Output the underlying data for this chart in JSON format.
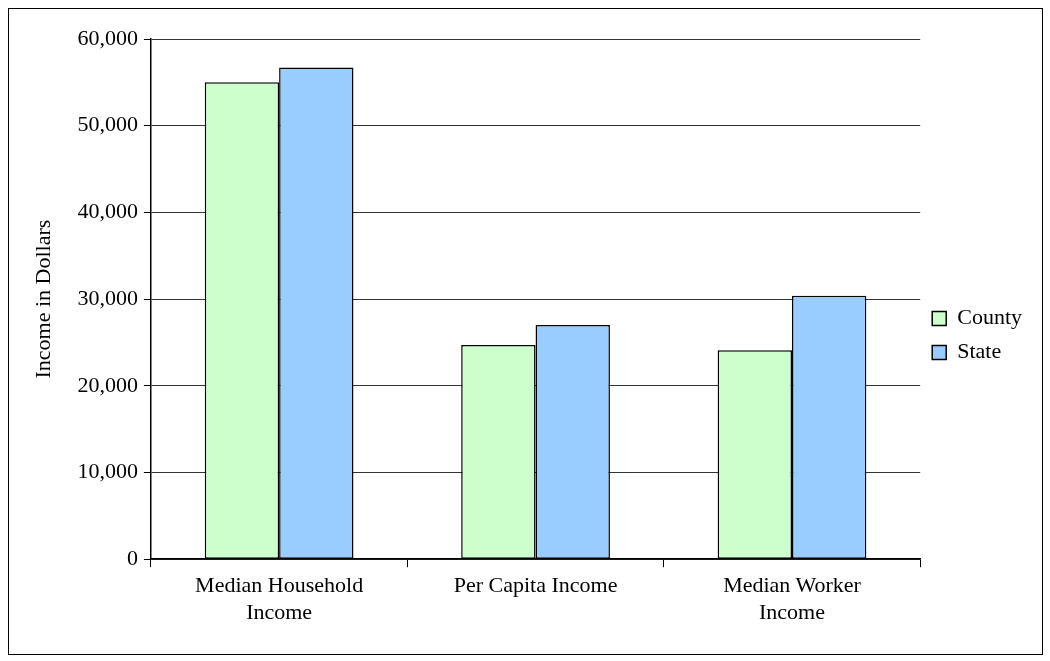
{
  "chart_data": {
    "type": "bar",
    "ylabel": "Income in Dollars",
    "categories": [
      "Median Household Income",
      "Per Capita Income",
      "Median Worker Income"
    ],
    "series": [
      {
        "name": "County",
        "color": "#ccffcc",
        "values": [
          55000,
          24700,
          24100
        ]
      },
      {
        "name": "State",
        "color": "#99ccff",
        "values": [
          56700,
          27000,
          30400
        ]
      }
    ],
    "ylim": [
      0,
      60000
    ],
    "yticks": [
      0,
      {
        "value": 10000,
        "label": "10,000"
      },
      {
        "value": 20000,
        "label": "20,000"
      },
      {
        "value": 30000,
        "label": "30,000"
      },
      {
        "value": 40000,
        "label": "40,000"
      },
      {
        "value": 50000,
        "label": "50,000"
      },
      {
        "value": 60000,
        "label": "60,000"
      }
    ],
    "grid": "y",
    "legend": "right"
  }
}
